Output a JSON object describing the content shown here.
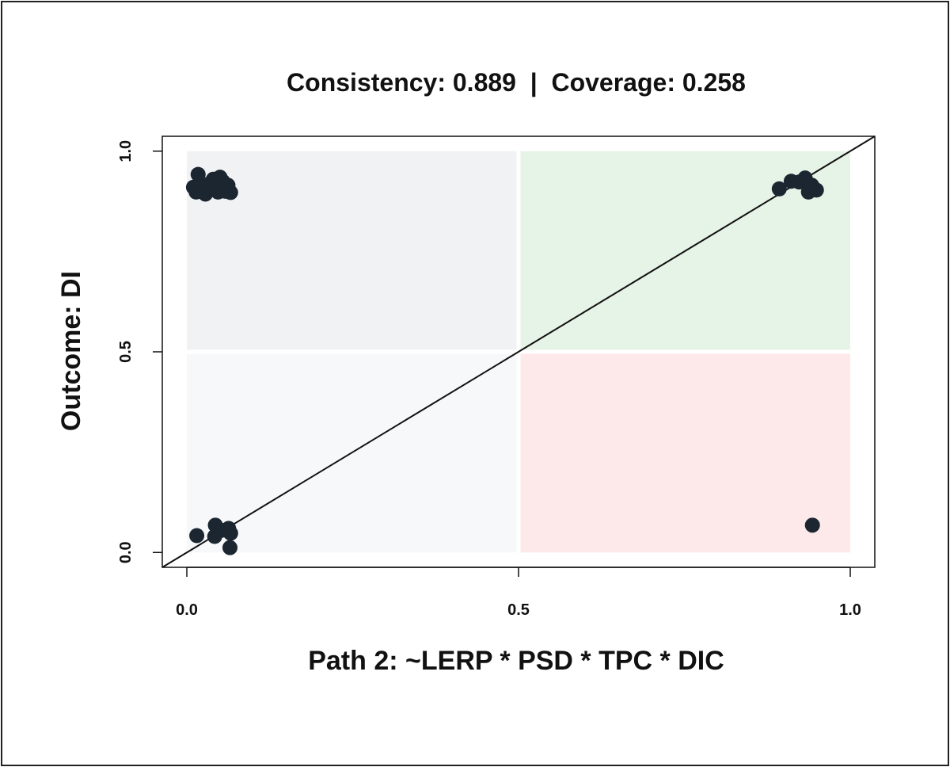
{
  "chart_data": {
    "type": "scatter",
    "title": "Consistency: 0.889  |  Coverage: 0.258",
    "xlabel": "Path 2: ~LERP * PSD * TPC * DIC",
    "ylabel": "Outcome: DI",
    "xlim": [
      -0.037,
      1.037
    ],
    "ylim": [
      -0.037,
      1.037
    ],
    "x_ticks": [
      "0.0",
      "0.5",
      "1.0"
    ],
    "y_ticks": [
      "0.0",
      "0.5",
      "1.0"
    ],
    "x_tick_values": [
      0.0,
      0.5,
      1.0
    ],
    "y_tick_values": [
      0.0,
      0.5,
      1.0
    ],
    "grid": false,
    "reference_line": "y = x diagonal",
    "quadrants": [
      {
        "name": "top-left",
        "x": [
          0.0,
          0.5
        ],
        "y": [
          0.5,
          1.0
        ],
        "color": "#f1f2f4"
      },
      {
        "name": "top-right",
        "x": [
          0.5,
          1.0
        ],
        "y": [
          0.5,
          1.0
        ],
        "color": "#e6f3e7"
      },
      {
        "name": "bottom-left",
        "x": [
          0.0,
          0.5
        ],
        "y": [
          0.0,
          0.5
        ],
        "color": "#f7f8fa"
      },
      {
        "name": "bottom-right",
        "x": [
          0.5,
          1.0
        ],
        "y": [
          0.0,
          0.5
        ],
        "color": "#fde8ea"
      }
    ],
    "point_color": "#1b2631",
    "points": [
      {
        "x": 0.017,
        "y": 0.942
      },
      {
        "x": 0.01,
        "y": 0.91
      },
      {
        "x": 0.014,
        "y": 0.898
      },
      {
        "x": 0.02,
        "y": 0.915
      },
      {
        "x": 0.025,
        "y": 0.905
      },
      {
        "x": 0.028,
        "y": 0.893
      },
      {
        "x": 0.035,
        "y": 0.92
      },
      {
        "x": 0.04,
        "y": 0.93
      },
      {
        "x": 0.045,
        "y": 0.91
      },
      {
        "x": 0.05,
        "y": 0.935
      },
      {
        "x": 0.054,
        "y": 0.925
      },
      {
        "x": 0.058,
        "y": 0.9
      },
      {
        "x": 0.062,
        "y": 0.915
      },
      {
        "x": 0.066,
        "y": 0.897
      },
      {
        "x": 0.047,
        "y": 0.898
      },
      {
        "x": 0.015,
        "y": 0.042
      },
      {
        "x": 0.043,
        "y": 0.068
      },
      {
        "x": 0.042,
        "y": 0.04
      },
      {
        "x": 0.052,
        "y": 0.055
      },
      {
        "x": 0.063,
        "y": 0.06
      },
      {
        "x": 0.066,
        "y": 0.048
      },
      {
        "x": 0.065,
        "y": 0.012
      },
      {
        "x": 0.893,
        "y": 0.906
      },
      {
        "x": 0.911,
        "y": 0.925
      },
      {
        "x": 0.923,
        "y": 0.923
      },
      {
        "x": 0.932,
        "y": 0.933
      },
      {
        "x": 0.937,
        "y": 0.898
      },
      {
        "x": 0.942,
        "y": 0.915
      },
      {
        "x": 0.949,
        "y": 0.903
      },
      {
        "x": 0.943,
        "y": 0.068
      }
    ]
  }
}
